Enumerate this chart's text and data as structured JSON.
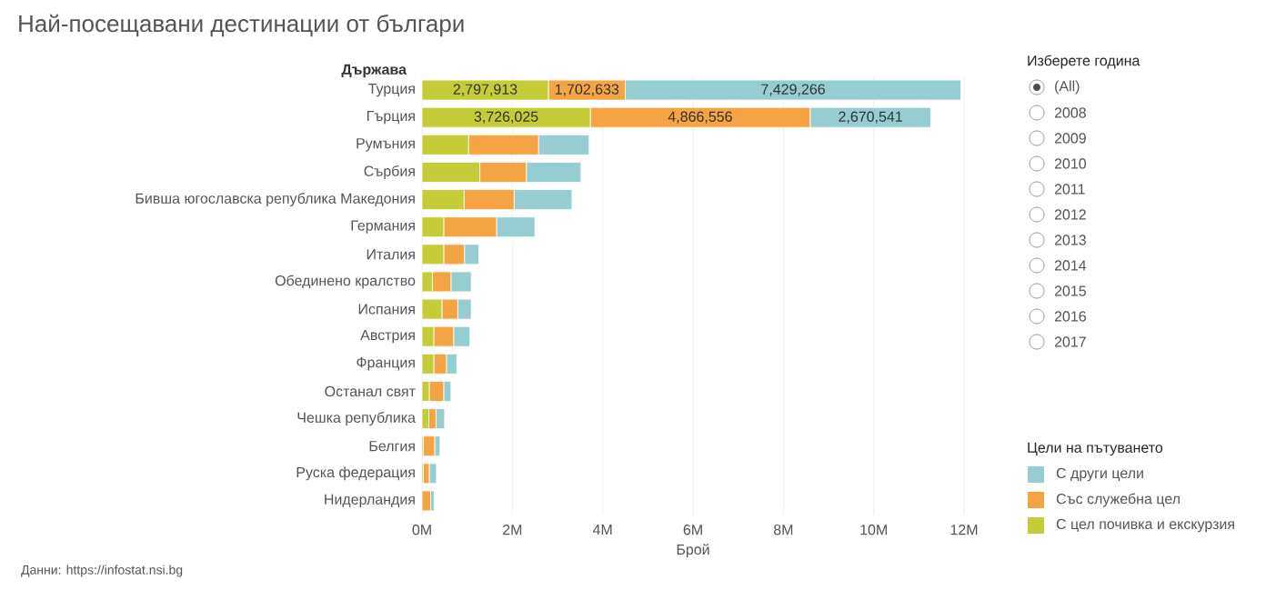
{
  "chart_data": {
    "type": "bar",
    "orientation": "horizontal",
    "stacked": true,
    "title": "Най-посещавани дестинации от българи",
    "ylabel": "Държава",
    "xlabel": "Брой",
    "legend_title": "Цели на пътуването",
    "categories": [
      "Турция",
      "Гърция",
      "Румъния",
      "Сърбия",
      "Бивша югославска република Македония",
      "Германия",
      "Италия",
      "Обединено кралство",
      "Испания",
      "Австрия",
      "Франция",
      "Останал свят",
      "Чешка република",
      "Белгия",
      "Руска федерация",
      "Нидерландия"
    ],
    "series": [
      {
        "name": "С цел почивка и екскурзия",
        "color": "#c4cc38",
        "values": [
          2797913,
          3726025,
          1030000,
          1280000,
          930000,
          480000,
          480000,
          230000,
          440000,
          260000,
          260000,
          160000,
          150000,
          30000,
          30000,
          null
        ],
        "value_labels": [
          "2,797,913",
          "3,726,025",
          null,
          null,
          null,
          null,
          null,
          null,
          null,
          null,
          null,
          null,
          null,
          null,
          null,
          null
        ]
      },
      {
        "name": "Със служебна цел",
        "color": "#f4a443",
        "values": [
          1702633,
          4866556,
          1550000,
          1030000,
          1110000,
          1170000,
          460000,
          410000,
          350000,
          440000,
          280000,
          320000,
          160000,
          250000,
          130000,
          190000
        ],
        "value_labels": [
          "1,702,633",
          "4,866,556",
          null,
          null,
          null,
          null,
          null,
          null,
          null,
          null,
          null,
          null,
          null,
          null,
          null,
          null
        ]
      },
      {
        "name": "С други цели",
        "color": "#96cdd0",
        "values": [
          7429266,
          2670541,
          1120000,
          1210000,
          1280000,
          850000,
          320000,
          450000,
          300000,
          360000,
          230000,
          160000,
          190000,
          120000,
          160000,
          80000
        ],
        "value_labels": [
          "7,429,266",
          "2,670,541",
          null,
          null,
          null,
          null,
          null,
          null,
          null,
          null,
          null,
          null,
          null,
          null,
          null,
          null
        ]
      }
    ],
    "xlim": [
      0,
      12000000
    ],
    "xticks": [
      {
        "value": 0,
        "label": "0M"
      },
      {
        "value": 2000000,
        "label": "2M"
      },
      {
        "value": 4000000,
        "label": "4M"
      },
      {
        "value": 6000000,
        "label": "6M"
      },
      {
        "value": 8000000,
        "label": "8M"
      },
      {
        "value": 10000000,
        "label": "10M"
      },
      {
        "value": 12000000,
        "label": "12M"
      }
    ],
    "grid": "x",
    "legend": "right",
    "annotations": [
      "Данни: https://infostat.nsi.bg",
      "Изберете година",
      "(All)",
      "2008",
      "2009",
      "2010",
      "2011",
      "2012",
      "2013",
      "2014",
      "2015",
      "2016",
      "2017"
    ]
  }
}
